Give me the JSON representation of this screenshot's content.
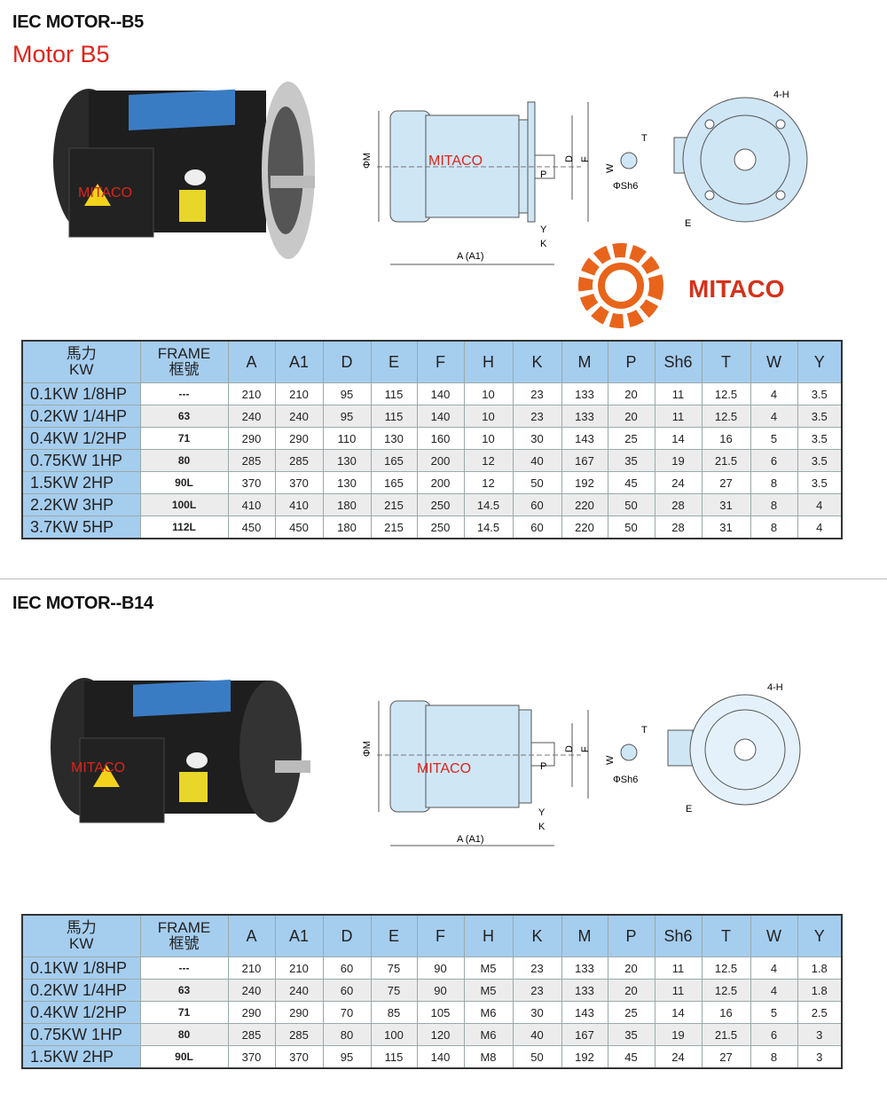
{
  "section1": {
    "title": "IEC MOTOR--B5",
    "subtitle": "Motor B5",
    "photo_watermark": "MITACO",
    "diagram": {
      "phi_m": "ΦM",
      "watermark": "MITACO",
      "d": "D",
      "f": "F",
      "p": "P",
      "y": "Y",
      "k": "K",
      "a": "A (A1)",
      "t": "T",
      "w": "W",
      "sh6": "ΦSh6",
      "h4": "4-H",
      "e": "E"
    },
    "table": {
      "headers": [
        "馬力\nKW",
        "FRAME\n框號",
        "A",
        "A1",
        "D",
        "E",
        "F",
        "H",
        "K",
        "M",
        "P",
        "Sh6",
        "T",
        "W",
        "Y"
      ],
      "rows": [
        [
          "0.1KW 1/8HP",
          "---",
          "210",
          "210",
          "95",
          "115",
          "140",
          "10",
          "23",
          "133",
          "20",
          "11",
          "12.5",
          "4",
          "3.5"
        ],
        [
          "0.2KW 1/4HP",
          "63",
          "240",
          "240",
          "95",
          "115",
          "140",
          "10",
          "23",
          "133",
          "20",
          "11",
          "12.5",
          "4",
          "3.5"
        ],
        [
          "0.4KW 1/2HP",
          "71",
          "290",
          "290",
          "110",
          "130",
          "160",
          "10",
          "30",
          "143",
          "25",
          "14",
          "16",
          "5",
          "3.5"
        ],
        [
          "0.75KW 1HP",
          "80",
          "285",
          "285",
          "130",
          "165",
          "200",
          "12",
          "40",
          "167",
          "35",
          "19",
          "21.5",
          "6",
          "3.5"
        ],
        [
          "1.5KW 2HP",
          "90L",
          "370",
          "370",
          "130",
          "165",
          "200",
          "12",
          "50",
          "192",
          "45",
          "24",
          "27",
          "8",
          "3.5"
        ],
        [
          "2.2KW 3HP",
          "100L",
          "410",
          "410",
          "180",
          "215",
          "250",
          "14.5",
          "60",
          "220",
          "50",
          "28",
          "31",
          "8",
          "4"
        ],
        [
          "3.7KW 5HP",
          "112L",
          "450",
          "450",
          "180",
          "215",
          "250",
          "14.5",
          "60",
          "220",
          "50",
          "28",
          "31",
          "8",
          "4"
        ]
      ]
    }
  },
  "logo": {
    "text": "MITACO",
    "color": "#e8641b"
  },
  "section2": {
    "title": "IEC MOTOR--B14",
    "photo_watermark": "MITACO",
    "diagram": {
      "phi_m": "ΦM",
      "watermark": "MITACO",
      "d": "D",
      "f": "F",
      "p": "P",
      "y": "Y",
      "k": "K",
      "a": "A (A1)",
      "t": "T",
      "w": "W",
      "sh6": "ΦSh6",
      "h4": "4-H",
      "e": "E"
    },
    "table": {
      "headers": [
        "馬力\nKW",
        "FRAME\n框號",
        "A",
        "A1",
        "D",
        "E",
        "F",
        "H",
        "K",
        "M",
        "P",
        "Sh6",
        "T",
        "W",
        "Y"
      ],
      "rows": [
        [
          "0.1KW 1/8HP",
          "---",
          "210",
          "210",
          "60",
          "75",
          "90",
          "M5",
          "23",
          "133",
          "20",
          "11",
          "12.5",
          "4",
          "1.8"
        ],
        [
          "0.2KW 1/4HP",
          "63",
          "240",
          "240",
          "60",
          "75",
          "90",
          "M5",
          "23",
          "133",
          "20",
          "11",
          "12.5",
          "4",
          "1.8"
        ],
        [
          "0.4KW 1/2HP",
          "71",
          "290",
          "290",
          "70",
          "85",
          "105",
          "M6",
          "30",
          "143",
          "25",
          "14",
          "16",
          "5",
          "2.5"
        ],
        [
          "0.75KW 1HP",
          "80",
          "285",
          "285",
          "80",
          "100",
          "120",
          "M6",
          "40",
          "167",
          "35",
          "19",
          "21.5",
          "6",
          "3"
        ],
        [
          "1.5KW 2HP",
          "90L",
          "370",
          "370",
          "95",
          "115",
          "140",
          "M8",
          "50",
          "192",
          "45",
          "24",
          "27",
          "8",
          "3"
        ]
      ]
    }
  },
  "colors": {
    "header_blue": "#a5cdee",
    "watermark_red": "#e0231b",
    "logo_orange": "#e8641b"
  }
}
